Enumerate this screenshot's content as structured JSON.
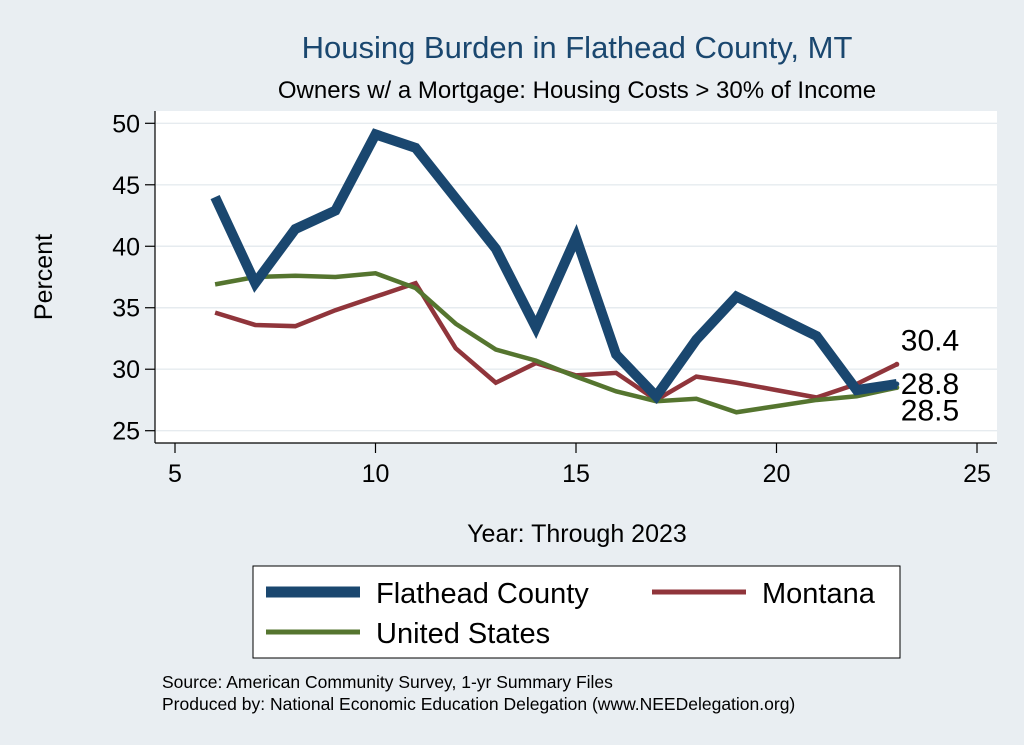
{
  "chart_data": {
    "type": "line",
    "title": "Housing Burden in Flathead County, MT",
    "subtitle": "Owners w/ a Mortgage: Housing Costs > 30% of Income",
    "xlabel": "Year: Through 2023",
    "ylabel": "Percent",
    "xlim": [
      5,
      25
    ],
    "ylim": [
      24,
      51
    ],
    "xticks": [
      5,
      10,
      15,
      20,
      25
    ],
    "yticks": [
      25,
      30,
      35,
      40,
      45,
      50
    ],
    "grid": true,
    "legend": "bottom",
    "series": [
      {
        "name": "Flathead County",
        "color": "#1a476f",
        "x": [
          6,
          7,
          8,
          9,
          10,
          11,
          12,
          13,
          14,
          15,
          16,
          17,
          18,
          19,
          20,
          21,
          22,
          23
        ],
        "values": [
          44.0,
          37.0,
          41.4,
          42.9,
          49.1,
          48.0,
          43.9,
          39.8,
          33.4,
          40.7,
          31.2,
          27.8,
          32.4,
          35.9,
          34.3,
          32.7,
          28.3,
          28.8
        ],
        "end_label": "28.8"
      },
      {
        "name": "Montana",
        "color": "#90353b",
        "x": [
          6,
          7,
          8,
          9,
          10,
          11,
          12,
          13,
          14,
          15,
          16,
          17,
          18,
          19,
          20,
          21,
          22,
          23
        ],
        "values": [
          34.6,
          33.6,
          33.5,
          34.8,
          35.9,
          37.0,
          31.7,
          28.9,
          30.5,
          29.5,
          29.7,
          27.5,
          29.4,
          28.9,
          28.3,
          27.7,
          28.8,
          30.4
        ],
        "end_label": "30.4"
      },
      {
        "name": "United States",
        "color": "#55752f",
        "x": [
          6,
          7,
          8,
          9,
          10,
          11,
          12,
          13,
          14,
          15,
          16,
          17,
          18,
          19,
          20,
          21,
          22,
          23
        ],
        "values": [
          36.9,
          37.5,
          37.6,
          37.5,
          37.8,
          36.6,
          33.7,
          31.6,
          30.7,
          29.4,
          28.2,
          27.4,
          27.6,
          26.5,
          27.0,
          27.5,
          27.8,
          28.5
        ],
        "end_label": "28.5"
      }
    ]
  },
  "footer": {
    "source": "Source: American Community Survey, 1-yr Summary Files",
    "produced_by": "Produced by: National Economic Education Delegation (www.NEEDelegation.org)"
  }
}
